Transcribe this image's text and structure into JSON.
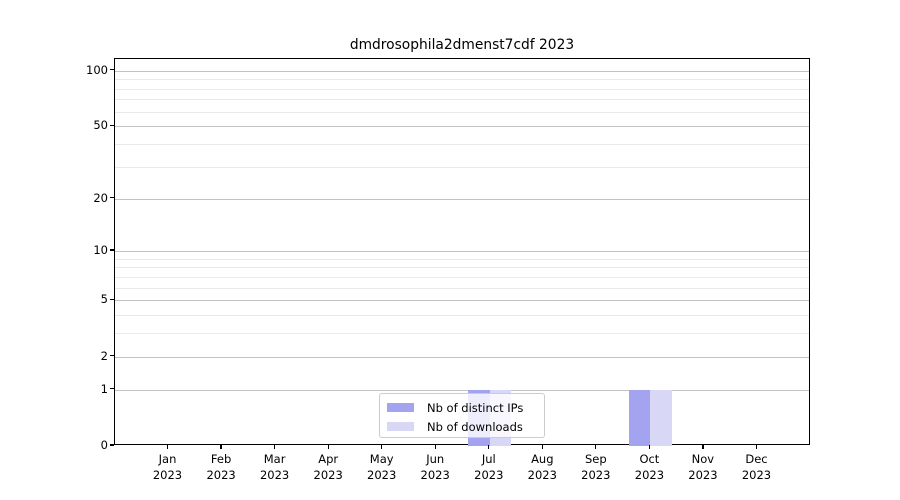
{
  "title": "dmdrosophila2dmenst7cdf 2023",
  "chart_data": {
    "type": "bar",
    "title": "dmdrosophila2dmenst7cdf 2023",
    "categories": [
      "Jan 2023",
      "Feb 2023",
      "Mar 2023",
      "Apr 2023",
      "May 2023",
      "Jun 2023",
      "Jul 2023",
      "Aug 2023",
      "Sep 2023",
      "Oct 2023",
      "Nov 2023",
      "Dec 2023"
    ],
    "series": [
      {
        "name": "Nb of distinct IPs",
        "color": "#a3a3ef",
        "values": [
          0,
          0,
          0,
          0,
          0,
          0,
          1,
          0,
          0,
          1,
          0,
          0
        ]
      },
      {
        "name": "Nb of downloads",
        "color": "#d8d8f6",
        "values": [
          0,
          0,
          0,
          0,
          0,
          0,
          1,
          0,
          0,
          1,
          0,
          0
        ]
      }
    ],
    "xlabel": "",
    "ylabel": "",
    "yscale": "log1p",
    "ylim": [
      0,
      115
    ],
    "yticks": [
      0,
      1,
      2,
      5,
      10,
      20,
      50,
      100
    ],
    "yminorgrid": [
      3,
      4,
      6,
      7,
      8,
      9,
      30,
      40,
      60,
      70,
      80,
      90
    ],
    "grid": "horizontal",
    "legend_position": "lower center"
  },
  "legend": {
    "items": [
      {
        "label": "Nb of distinct IPs",
        "color": "#a3a3ef"
      },
      {
        "label": "Nb of downloads",
        "color": "#d8d8f6"
      }
    ]
  },
  "colors": {
    "bar_distinct_ips": "#a3a3ef",
    "bar_downloads": "#d8d8f6",
    "major_grid": "#c3c3c3",
    "minor_grid": "#e9e9e9",
    "spine": "#000000",
    "background": "#ffffff"
  }
}
